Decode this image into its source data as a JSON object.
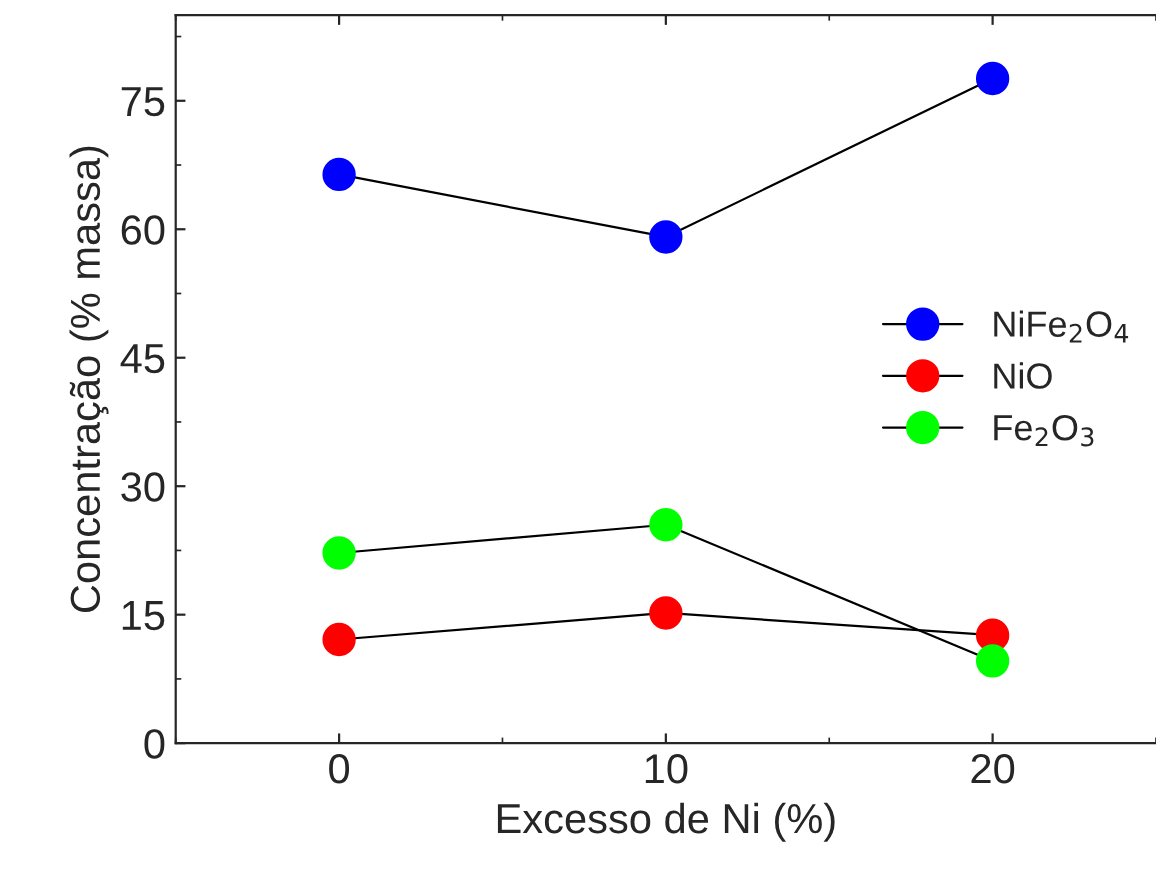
{
  "chart_data": {
    "type": "line",
    "xlabel": "Excesso de Ni (%)",
    "ylabel": "Concentração (% massa)",
    "x": [
      0,
      10,
      20
    ],
    "xlim": [
      -5,
      25
    ],
    "xticks": [
      0,
      10,
      20
    ],
    "ylim": [
      0,
      85
    ],
    "yticks": [
      0,
      15,
      30,
      45,
      60,
      75
    ],
    "marker": "circle",
    "line_style": "solid",
    "legend": "right",
    "grid": false,
    "series": [
      {
        "name": "NiFe$_{2}$O$_{4}$",
        "color": "#0000ff",
        "values": [
          66.4,
          59.1,
          77.6
        ]
      },
      {
        "name": "NiO",
        "color": "#ff0000",
        "values": [
          12.1,
          15.2,
          12.6
        ]
      },
      {
        "name": "Fe$_{2}$O$_{3}$",
        "color": "#00ff00",
        "values": [
          22.2,
          25.5,
          9.6
        ]
      }
    ]
  }
}
